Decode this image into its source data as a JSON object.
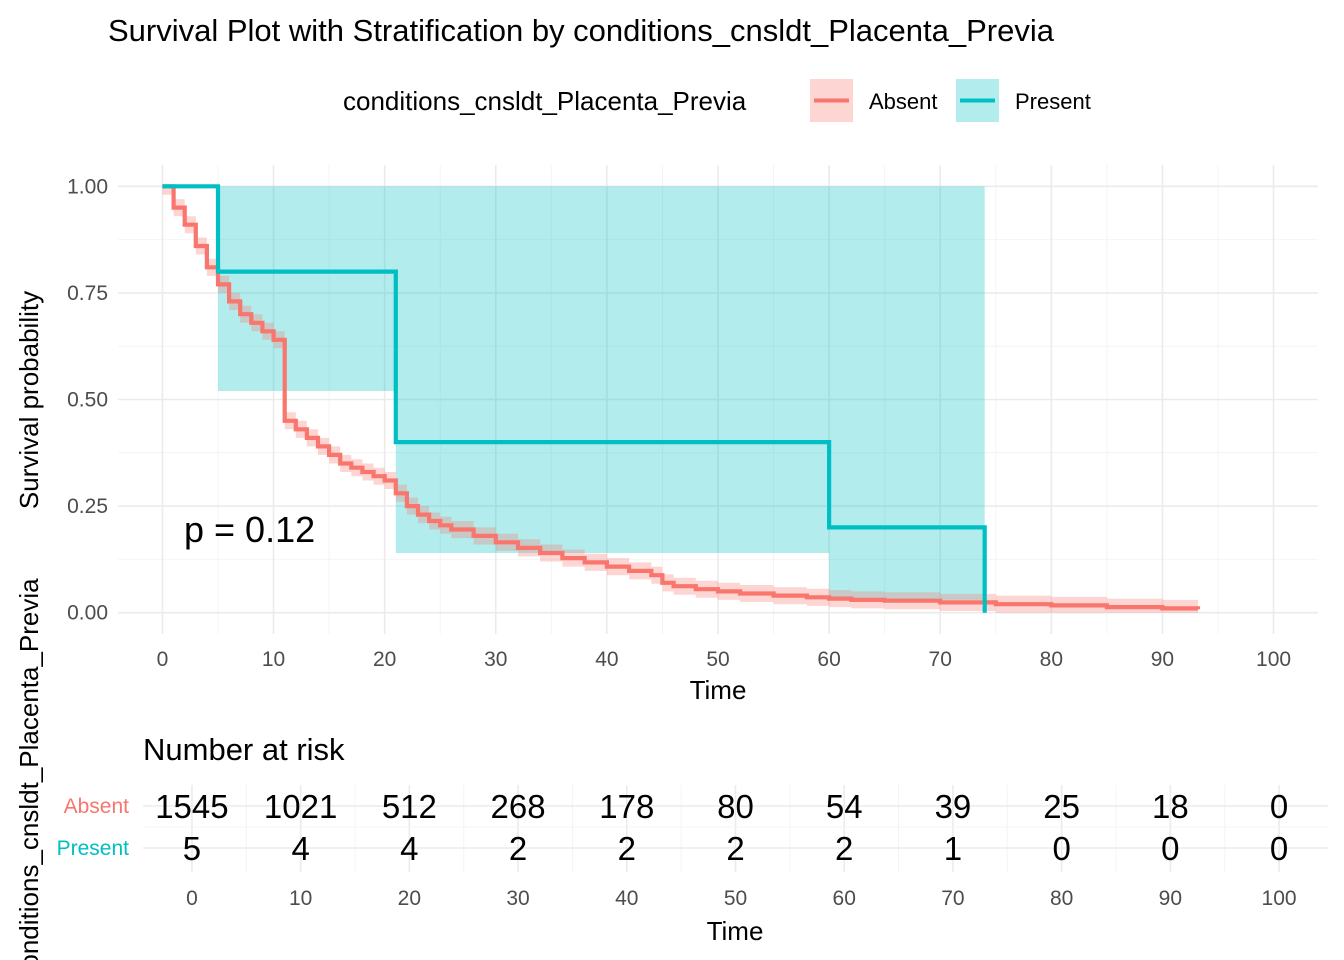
{
  "chart_data": {
    "type": "line",
    "title": "Survival Plot with Stratification by conditions_cnsldt_Placenta_Previa",
    "legend": {
      "title": "conditions_cnsldt_Placenta_Previa",
      "position": "top",
      "entries": [
        {
          "name": "Absent",
          "color": "#F8766D"
        },
        {
          "name": "Present",
          "color": "#00BFC4"
        }
      ]
    },
    "xlabel": "Time",
    "ylabel": "Survival probability",
    "xlim": [
      -4,
      104
    ],
    "ylim": [
      -0.05,
      1.05
    ],
    "x_ticks": [
      0,
      10,
      20,
      30,
      40,
      50,
      60,
      70,
      80,
      90,
      100
    ],
    "x_tick_labels": [
      "0",
      "10",
      "20",
      "30",
      "40",
      "50",
      "60",
      "70",
      "80",
      "90",
      "100"
    ],
    "y_ticks": [
      0,
      0.25,
      0.5,
      0.75,
      1
    ],
    "y_tick_labels": [
      "0.00",
      "0.25",
      "0.50",
      "0.75",
      "1.00"
    ],
    "grid": true,
    "annotation": "p = 0.12",
    "annotation_pos": [
      1.5,
      0.18
    ],
    "series": [
      {
        "name": "Absent",
        "color": "#F8766D",
        "band_color": "#F8766D",
        "x": [
          0,
          1,
          2,
          3,
          4,
          5,
          6,
          7,
          8,
          9,
          10,
          11,
          12,
          13,
          14,
          15,
          16,
          17,
          18,
          19,
          20,
          21,
          22,
          23,
          24,
          25,
          26,
          28,
          30,
          32,
          34,
          36,
          38,
          40,
          42,
          44,
          45,
          46,
          48,
          50,
          52,
          55,
          58,
          60,
          62,
          65,
          70,
          75,
          80,
          85,
          90,
          93.2
        ],
        "y": [
          1,
          0.95,
          0.91,
          0.86,
          0.81,
          0.77,
          0.73,
          0.7,
          0.68,
          0.66,
          0.64,
          0.45,
          0.43,
          0.41,
          0.39,
          0.37,
          0.35,
          0.34,
          0.33,
          0.32,
          0.31,
          0.28,
          0.25,
          0.23,
          0.215,
          0.205,
          0.195,
          0.18,
          0.165,
          0.152,
          0.14,
          0.128,
          0.118,
          0.108,
          0.098,
          0.088,
          0.07,
          0.062,
          0.055,
          0.05,
          0.045,
          0.04,
          0.036,
          0.033,
          0.03,
          0.028,
          0.024,
          0.02,
          0.017,
          0.013,
          0.01,
          0.008
        ],
        "band_width": 0.02
      },
      {
        "name": "Present",
        "color": "#00BFC4",
        "band_color": "#00BFC4",
        "x": [
          0,
          5,
          21,
          60,
          74
        ],
        "y": [
          1,
          0.8,
          0.4,
          0.2,
          0.0
        ],
        "lower": [
          1,
          0.52,
          0.14,
          0.03,
          0.0
        ],
        "upper": [
          1,
          1.0,
          1.0,
          1.0,
          1.0
        ],
        "end": 74
      }
    ]
  },
  "risk_table": {
    "title": "Number at risk",
    "ylabel": "conditions_cnsldt_Placenta_Previa",
    "xlabel": "Time",
    "times": [
      "0",
      "10",
      "20",
      "30",
      "40",
      "50",
      "60",
      "70",
      "80",
      "90",
      "100"
    ],
    "rows": [
      {
        "name": "Absent",
        "color": "#F8766D",
        "counts": [
          "1545",
          "1021",
          "512",
          "268",
          "178",
          "80",
          "54",
          "39",
          "25",
          "18",
          "0"
        ]
      },
      {
        "name": "Present",
        "color": "#00BFC4",
        "counts": [
          "5",
          "4",
          "4",
          "2",
          "2",
          "2",
          "2",
          "1",
          "0",
          "0",
          "0"
        ]
      }
    ]
  }
}
